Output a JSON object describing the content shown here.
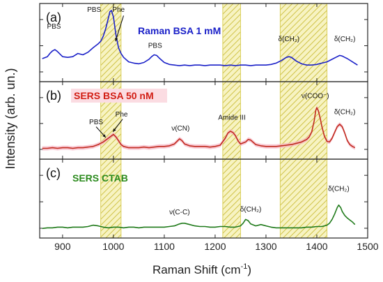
{
  "chart_data": {
    "type": "line",
    "xlabel": "Raman Shift (cm",
    "xlabel_sup": "-1",
    "xlabel_end": ")",
    "ylabel": "Intensity (arb. un.)",
    "xlim": [
      855,
      1500
    ],
    "x_ticks": [
      "900",
      "1000",
      "1100",
      "1200",
      "1300",
      "1400",
      "1500"
    ],
    "x_tick_values": [
      900,
      1000,
      1100,
      1200,
      1300,
      1400,
      1500
    ],
    "bands": [
      [
        975,
        1015
      ],
      [
        1215,
        1250
      ],
      [
        1328,
        1420
      ]
    ],
    "band_color": "#d9cf5a",
    "panels": [
      {
        "letter": "(a)",
        "title": "Raman BSA 1 mM",
        "color": "#1a20c8",
        "title_color": "#1a20c8",
        "title_bg": "",
        "fill": "",
        "ylim": [
          0,
          1
        ],
        "annotations": [
          {
            "text": "PBS",
            "x": 883,
            "y": 0.72
          },
          {
            "text": "PBS",
            "x": 962,
            "y": 0.98
          },
          {
            "text": "Phe",
            "x": 1010,
            "y": 0.98
          },
          {
            "text": "PBS",
            "x": 1082,
            "y": 0.42
          },
          {
            "text": "δ(CH₂)",
            "x": 1345,
            "y": 0.52
          },
          {
            "text": "δ(CH₂)",
            "x": 1455,
            "y": 0.52
          }
        ],
        "arrows": [
          {
            "x1": 1020,
            "y1": 0.92,
            "x2": 1004,
            "y2": 0.52
          }
        ],
        "x": [
          860,
          870,
          875,
          880,
          885,
          890,
          900,
          910,
          920,
          930,
          940,
          950,
          960,
          970,
          975,
          980,
          985,
          990,
          993,
          996,
          1000,
          1005,
          1010,
          1015,
          1020,
          1030,
          1040,
          1050,
          1060,
          1070,
          1075,
          1080,
          1085,
          1090,
          1100,
          1110,
          1120,
          1130,
          1140,
          1150,
          1160,
          1170,
          1180,
          1190,
          1200,
          1210,
          1220,
          1230,
          1240,
          1250,
          1260,
          1270,
          1280,
          1290,
          1300,
          1310,
          1320,
          1330,
          1340,
          1345,
          1350,
          1360,
          1370,
          1380,
          1390,
          1400,
          1410,
          1420,
          1430,
          1440,
          1445,
          1450,
          1455,
          1460,
          1470,
          1480
        ],
        "y": [
          0.25,
          0.28,
          0.33,
          0.37,
          0.39,
          0.36,
          0.28,
          0.27,
          0.28,
          0.33,
          0.31,
          0.35,
          0.42,
          0.48,
          0.52,
          0.6,
          0.72,
          0.88,
          0.98,
          1.0,
          0.9,
          0.62,
          0.42,
          0.33,
          0.27,
          0.2,
          0.18,
          0.17,
          0.19,
          0.24,
          0.28,
          0.31,
          0.3,
          0.26,
          0.19,
          0.16,
          0.15,
          0.14,
          0.15,
          0.14,
          0.15,
          0.15,
          0.14,
          0.15,
          0.15,
          0.15,
          0.14,
          0.15,
          0.14,
          0.15,
          0.15,
          0.14,
          0.15,
          0.15,
          0.15,
          0.16,
          0.18,
          0.22,
          0.27,
          0.28,
          0.27,
          0.21,
          0.17,
          0.15,
          0.15,
          0.16,
          0.18,
          0.2,
          0.24,
          0.28,
          0.3,
          0.29,
          0.27,
          0.25,
          0.2,
          0.15
        ]
      },
      {
        "letter": "(b)",
        "title": "SERS BSA 50 nM",
        "color": "#c02a1e",
        "title_color": "#d21e14",
        "title_bg": "#fbdce2",
        "fill": "#f7b3c3",
        "ylim": [
          0,
          1
        ],
        "annotations": [
          {
            "text": "PBS",
            "x": 966,
            "y": 0.44
          },
          {
            "text": "Phe",
            "x": 1016,
            "y": 0.56
          },
          {
            "text": "ν(CN)",
            "x": 1132,
            "y": 0.34
          },
          {
            "text": "Amide III",
            "x": 1233,
            "y": 0.51
          },
          {
            "text": "ν(COO⁻)",
            "x": 1397,
            "y": 0.85
          },
          {
            "text": "δ(CH₂)",
            "x": 1455,
            "y": 0.6
          }
        ],
        "arrows": [
          {
            "x1": 966,
            "y1": 0.4,
            "x2": 985,
            "y2": 0.23
          },
          {
            "x1": 1018,
            "y1": 0.52,
            "x2": 999,
            "y2": 0.32
          }
        ],
        "x": [
          860,
          870,
          880,
          890,
          900,
          910,
          920,
          930,
          940,
          950,
          960,
          970,
          975,
          980,
          985,
          990,
          995,
          1000,
          1005,
          1010,
          1015,
          1020,
          1030,
          1040,
          1050,
          1060,
          1070,
          1080,
          1090,
          1100,
          1110,
          1120,
          1125,
          1130,
          1135,
          1140,
          1150,
          1160,
          1170,
          1180,
          1190,
          1200,
          1210,
          1220,
          1225,
          1230,
          1235,
          1240,
          1245,
          1250,
          1260,
          1265,
          1270,
          1280,
          1290,
          1300,
          1310,
          1320,
          1330,
          1340,
          1350,
          1360,
          1370,
          1380,
          1385,
          1390,
          1395,
          1398,
          1400,
          1403,
          1407,
          1410,
          1415,
          1420,
          1425,
          1430,
          1435,
          1440,
          1445,
          1450,
          1455,
          1460,
          1465,
          1470,
          1475
        ],
        "y": [
          0.06,
          0.06,
          0.07,
          0.06,
          0.07,
          0.07,
          0.06,
          0.07,
          0.07,
          0.08,
          0.09,
          0.12,
          0.14,
          0.16,
          0.19,
          0.22,
          0.25,
          0.28,
          0.24,
          0.18,
          0.12,
          0.09,
          0.07,
          0.07,
          0.07,
          0.08,
          0.07,
          0.08,
          0.09,
          0.09,
          0.1,
          0.13,
          0.17,
          0.21,
          0.18,
          0.13,
          0.1,
          0.09,
          0.09,
          0.09,
          0.08,
          0.09,
          0.11,
          0.22,
          0.3,
          0.33,
          0.31,
          0.26,
          0.18,
          0.13,
          0.16,
          0.2,
          0.19,
          0.12,
          0.1,
          0.09,
          0.09,
          0.09,
          0.1,
          0.11,
          0.12,
          0.14,
          0.16,
          0.2,
          0.24,
          0.32,
          0.5,
          0.66,
          0.7,
          0.65,
          0.52,
          0.4,
          0.25,
          0.17,
          0.16,
          0.22,
          0.31,
          0.4,
          0.44,
          0.4,
          0.3,
          0.18,
          0.12,
          0.09,
          0.07
        ]
      },
      {
        "letter": "(c)",
        "title": "SERS CTAB",
        "color": "#1f7a1a",
        "title_color": "#2a8a1c",
        "title_bg": "",
        "fill": "",
        "ylim": [
          0,
          1
        ],
        "annotations": [
          {
            "text": "ν(C-C)",
            "x": 1130,
            "y": 0.26
          },
          {
            "text": "δ(CH₂)",
            "x": 1270,
            "y": 0.3
          },
          {
            "text": "δ(CH₂)",
            "x": 1443,
            "y": 0.62
          }
        ],
        "arrows": [],
        "x": [
          860,
          870,
          880,
          890,
          900,
          910,
          920,
          930,
          940,
          950,
          960,
          970,
          980,
          990,
          1000,
          1010,
          1020,
          1030,
          1040,
          1050,
          1060,
          1070,
          1080,
          1090,
          1100,
          1110,
          1120,
          1130,
          1135,
          1140,
          1150,
          1160,
          1170,
          1180,
          1190,
          1200,
          1210,
          1220,
          1230,
          1240,
          1250,
          1255,
          1260,
          1265,
          1270,
          1280,
          1290,
          1300,
          1310,
          1320,
          1330,
          1340,
          1350,
          1360,
          1370,
          1380,
          1390,
          1400,
          1410,
          1420,
          1425,
          1430,
          1435,
          1440,
          1443,
          1447,
          1450,
          1455,
          1460,
          1465,
          1470,
          1475
        ],
        "y": [
          0.04,
          0.05,
          0.05,
          0.06,
          0.06,
          0.05,
          0.06,
          0.06,
          0.06,
          0.07,
          0.09,
          0.08,
          0.06,
          0.05,
          0.06,
          0.06,
          0.05,
          0.06,
          0.06,
          0.05,
          0.06,
          0.06,
          0.06,
          0.06,
          0.06,
          0.07,
          0.08,
          0.11,
          0.12,
          0.12,
          0.1,
          0.08,
          0.07,
          0.07,
          0.06,
          0.06,
          0.07,
          0.07,
          0.06,
          0.06,
          0.08,
          0.12,
          0.18,
          0.16,
          0.11,
          0.08,
          0.1,
          0.08,
          0.06,
          0.05,
          0.05,
          0.05,
          0.05,
          0.05,
          0.05,
          0.06,
          0.06,
          0.07,
          0.07,
          0.09,
          0.12,
          0.18,
          0.26,
          0.36,
          0.4,
          0.36,
          0.3,
          0.24,
          0.2,
          0.17,
          0.14,
          0.1
        ]
      }
    ]
  }
}
